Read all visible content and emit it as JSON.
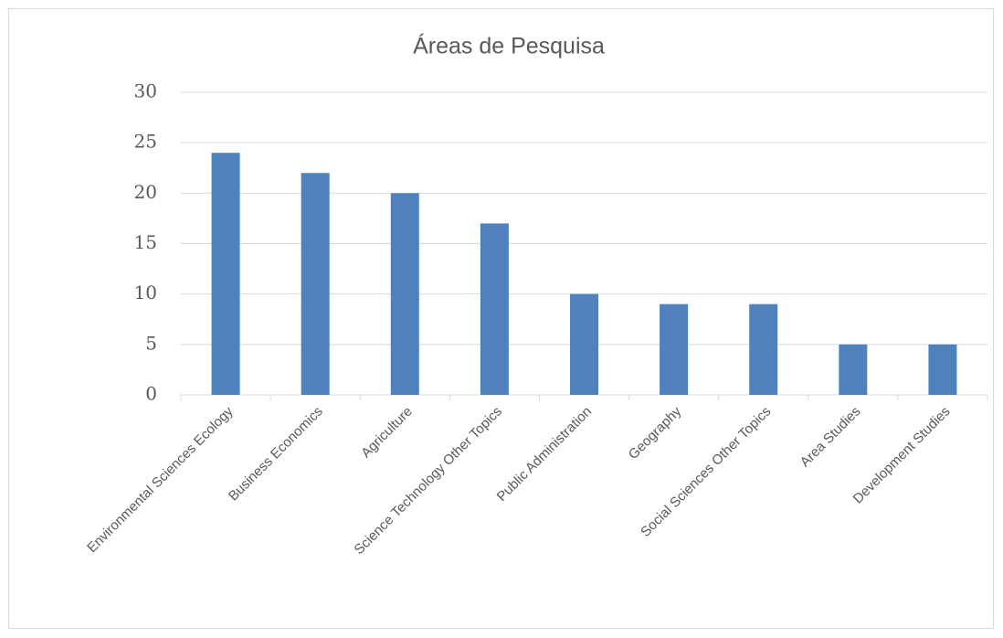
{
  "chart_data": {
    "type": "bar",
    "title": "Áreas de Pesquisa",
    "categories": [
      "Environmental Sciences Ecology",
      "Business Economics",
      "Agriculture",
      "Science Technology Other Topics",
      "Public Administration",
      "Geography",
      "Social Sciences Other Topics",
      "Area Studies",
      "Development Studies"
    ],
    "values": [
      24,
      22,
      20,
      17,
      10,
      9,
      9,
      5,
      5
    ],
    "color": "#4f81bd",
    "ylim": [
      0,
      30
    ],
    "yticks": [
      0,
      5,
      10,
      15,
      20,
      25,
      30
    ],
    "grid": true
  }
}
